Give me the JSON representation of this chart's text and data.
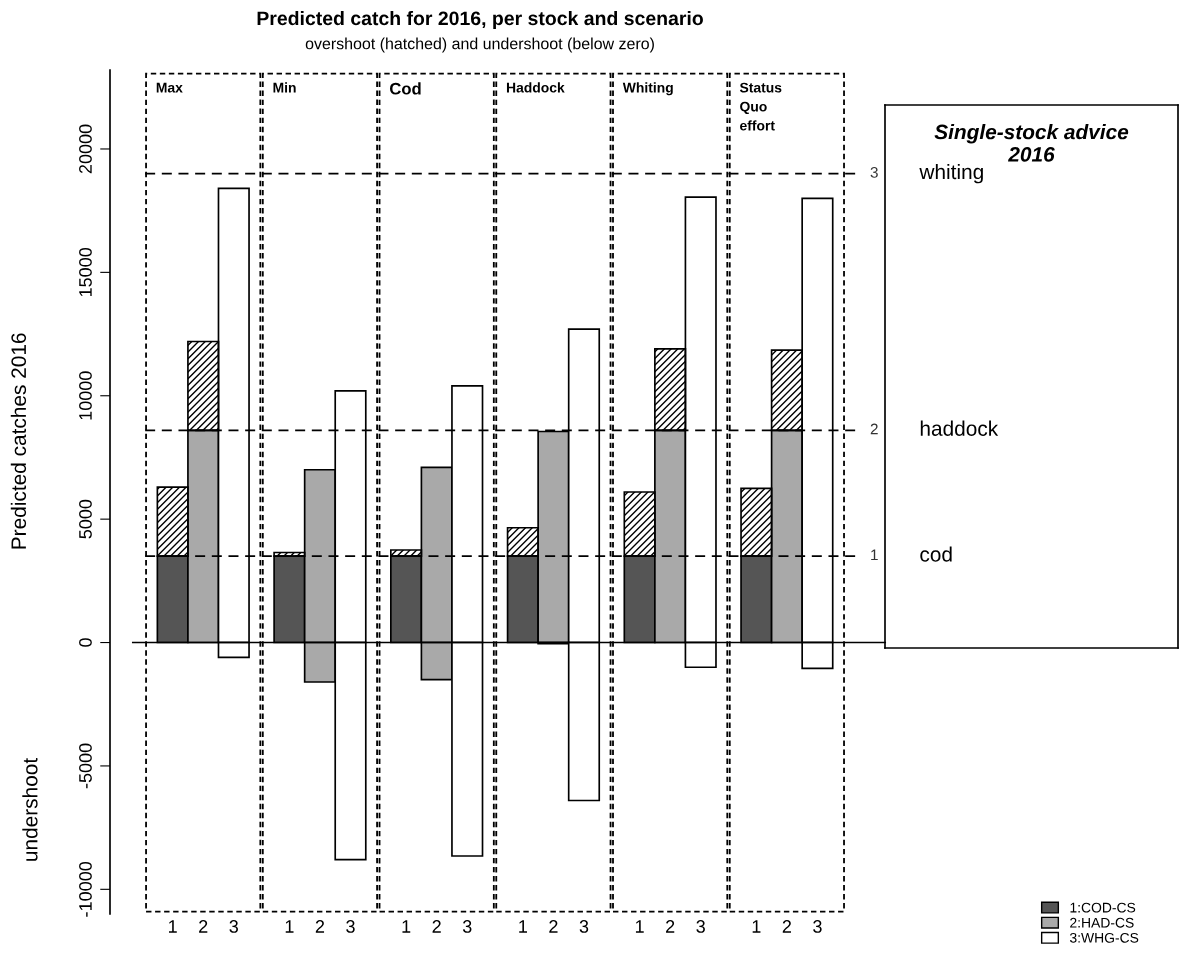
{
  "chart_data": {
    "type": "bar",
    "title": "Predicted catch for 2016, per stock and scenario",
    "subtitle": "overshoot (hatched) and undershoot (below zero)",
    "ylabel": "Predicted catches 2016",
    "categories": [
      "1",
      "2",
      "3",
      "1",
      "2",
      "3",
      "1",
      "2",
      "3",
      "1",
      "2",
      "3",
      "1",
      "2",
      "3",
      "1",
      "2",
      "3"
    ],
    "stacked": true,
    "series": [
      {
        "name": "1:COD-CS",
        "color": "#555555",
        "values": [
          3500,
          null,
          null,
          3500,
          null,
          null,
          3500,
          null,
          null,
          3500,
          null,
          null,
          3500,
          null,
          null,
          3500,
          null,
          null
        ]
      },
      {
        "name": "2:HAD-CS",
        "color": "#a9a9a9",
        "values": [
          null,
          8600,
          null,
          null,
          7000,
          null,
          null,
          7100,
          null,
          null,
          8550,
          null,
          null,
          8600,
          null,
          null,
          8600,
          null
        ]
      },
      {
        "name": "3:WHG-CS",
        "color": "#ffffff",
        "values": [
          null,
          null,
          18400,
          null,
          null,
          10200,
          null,
          null,
          10400,
          null,
          null,
          12700,
          null,
          null,
          18050,
          null,
          null,
          18000
        ]
      },
      {
        "color": "#000000",
        "values": [
          2800,
          3600,
          null,
          150,
          null,
          null,
          250,
          null,
          null,
          1150,
          null,
          null,
          2600,
          3300,
          null,
          2750,
          3250,
          null
        ]
      },
      {
        "colors": [
          "#555555",
          "#a9a9a9",
          "#ffffff",
          "#555555",
          "#a9a9a9",
          "#ffffff",
          "#555555",
          "#a9a9a9",
          "#ffffff",
          "#555555",
          "#a9a9a9",
          "#ffffff",
          "#555555",
          "#a9a9a9",
          "#ffffff",
          "#555555",
          "#a9a9a9",
          "#ffffff"
        ],
        "values": [
          null,
          null,
          -600,
          null,
          -1600,
          -8800,
          null,
          -1500,
          -8650,
          null,
          -50,
          -6400,
          null,
          null,
          -1000,
          null,
          null,
          -1050
        ]
      }
    ],
    "ylim": [
      -11000,
      23200
    ],
    "yticks": [
      -10000,
      -5000,
      0,
      5000,
      10000,
      15000,
      20000
    ],
    "ref_lines": [
      {
        "axis": "y",
        "value": 0,
        "line_style": "solid"
      },
      {
        "axis": "y",
        "value": 3500,
        "label": "cod",
        "line_style": "dashed"
      },
      {
        "axis": "y",
        "value": 8600,
        "label": "haddock",
        "line_style": "dashed"
      },
      {
        "axis": "y",
        "value": 19000,
        "label": "whiting",
        "line_style": "dashed"
      }
    ],
    "annotations": [
      "Max",
      "Min",
      "Cod",
      "Haddock",
      "Whiting",
      "Status\nQuo\neffort",
      "undershoot",
      "Single-stock advice\n2016",
      "1",
      "2",
      "3"
    ],
    "legend": "bottom right",
    "grid": false
  }
}
